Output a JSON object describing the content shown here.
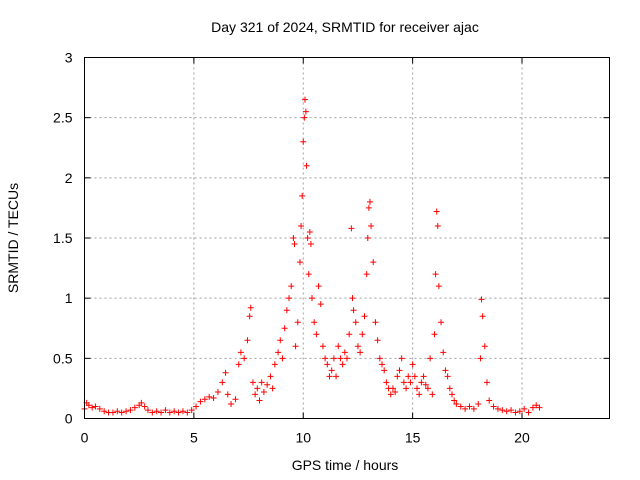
{
  "chart_data": {
    "type": "scatter",
    "title": "Day 321 of 2024, SRMTID for receiver ajac",
    "xlabel": "GPS time / hours",
    "ylabel": "SRMTID / TECUs",
    "xlim": [
      0,
      24
    ],
    "ylim": [
      0,
      3
    ],
    "xticks": [
      0,
      5,
      10,
      15,
      20
    ],
    "xtick_labels": [
      "0",
      "5",
      "10",
      "15",
      "20"
    ],
    "yticks": [
      0,
      0.5,
      1,
      1.5,
      2,
      2.5,
      3
    ],
    "ytick_labels": [
      "0",
      "0.5",
      "1",
      "1.5",
      "2",
      "2.5",
      "3"
    ],
    "grid": true,
    "marker": "plus",
    "series": [
      {
        "name": "SRMTID",
        "color": "#ff0000",
        "points": [
          [
            0.0,
            0.08
          ],
          [
            0.1,
            0.13
          ],
          [
            0.2,
            0.11
          ],
          [
            0.35,
            0.09
          ],
          [
            0.5,
            0.1
          ],
          [
            0.7,
            0.08
          ],
          [
            0.9,
            0.06
          ],
          [
            1.1,
            0.05
          ],
          [
            1.3,
            0.05
          ],
          [
            1.5,
            0.06
          ],
          [
            1.7,
            0.05
          ],
          [
            1.9,
            0.06
          ],
          [
            2.1,
            0.07
          ],
          [
            2.3,
            0.09
          ],
          [
            2.5,
            0.11
          ],
          [
            2.6,
            0.13
          ],
          [
            2.75,
            0.1
          ],
          [
            2.9,
            0.07
          ],
          [
            3.1,
            0.05
          ],
          [
            3.3,
            0.06
          ],
          [
            3.5,
            0.05
          ],
          [
            3.7,
            0.07
          ],
          [
            3.9,
            0.05
          ],
          [
            4.1,
            0.06
          ],
          [
            4.3,
            0.05
          ],
          [
            4.5,
            0.06
          ],
          [
            4.7,
            0.05
          ],
          [
            4.9,
            0.07
          ],
          [
            5.1,
            0.1
          ],
          [
            5.3,
            0.14
          ],
          [
            5.5,
            0.16
          ],
          [
            5.7,
            0.18
          ],
          [
            5.9,
            0.17
          ],
          [
            6.1,
            0.22
          ],
          [
            6.3,
            0.3
          ],
          [
            6.45,
            0.38
          ],
          [
            6.55,
            0.2
          ],
          [
            6.7,
            0.12
          ],
          [
            6.9,
            0.16
          ],
          [
            7.05,
            0.45
          ],
          [
            7.15,
            0.55
          ],
          [
            7.3,
            0.5
          ],
          [
            7.45,
            0.65
          ],
          [
            7.55,
            0.85
          ],
          [
            7.6,
            0.92
          ],
          [
            7.7,
            0.3
          ],
          [
            7.8,
            0.2
          ],
          [
            7.9,
            0.25
          ],
          [
            8.0,
            0.15
          ],
          [
            8.1,
            0.3
          ],
          [
            8.2,
            0.22
          ],
          [
            8.35,
            0.28
          ],
          [
            8.5,
            0.35
          ],
          [
            8.6,
            0.25
          ],
          [
            8.7,
            0.45
          ],
          [
            8.85,
            0.55
          ],
          [
            8.95,
            0.65
          ],
          [
            9.05,
            0.5
          ],
          [
            9.15,
            0.75
          ],
          [
            9.25,
            0.9
          ],
          [
            9.35,
            1.0
          ],
          [
            9.45,
            1.1
          ],
          [
            9.55,
            1.5
          ],
          [
            9.6,
            1.45
          ],
          [
            9.65,
            0.6
          ],
          [
            9.75,
            0.8
          ],
          [
            9.85,
            1.3
          ],
          [
            9.9,
            1.6
          ],
          [
            9.95,
            1.85
          ],
          [
            10.0,
            2.3
          ],
          [
            10.05,
            2.5
          ],
          [
            10.08,
            2.65
          ],
          [
            10.12,
            2.55
          ],
          [
            10.15,
            2.1
          ],
          [
            10.2,
            1.5
          ],
          [
            10.25,
            1.2
          ],
          [
            10.3,
            1.55
          ],
          [
            10.35,
            1.45
          ],
          [
            10.4,
            1.0
          ],
          [
            10.5,
            0.8
          ],
          [
            10.6,
            0.7
          ],
          [
            10.7,
            1.1
          ],
          [
            10.8,
            0.95
          ],
          [
            10.9,
            0.6
          ],
          [
            11.0,
            0.5
          ],
          [
            11.1,
            0.45
          ],
          [
            11.2,
            0.35
          ],
          [
            11.3,
            0.4
          ],
          [
            11.4,
            0.5
          ],
          [
            11.5,
            0.35
          ],
          [
            11.6,
            0.6
          ],
          [
            11.7,
            0.5
          ],
          [
            11.8,
            0.45
          ],
          [
            11.9,
            0.55
          ],
          [
            12.0,
            0.5
          ],
          [
            12.1,
            0.7
          ],
          [
            12.2,
            1.58
          ],
          [
            12.25,
            1.0
          ],
          [
            12.3,
            0.9
          ],
          [
            12.4,
            0.8
          ],
          [
            12.5,
            0.6
          ],
          [
            12.6,
            0.55
          ],
          [
            12.7,
            0.7
          ],
          [
            12.8,
            0.85
          ],
          [
            12.9,
            1.2
          ],
          [
            12.95,
            1.5
          ],
          [
            13.0,
            1.75
          ],
          [
            13.05,
            1.8
          ],
          [
            13.1,
            1.6
          ],
          [
            13.2,
            1.3
          ],
          [
            13.3,
            0.8
          ],
          [
            13.4,
            0.65
          ],
          [
            13.5,
            0.5
          ],
          [
            13.6,
            0.45
          ],
          [
            13.7,
            0.4
          ],
          [
            13.8,
            0.3
          ],
          [
            13.9,
            0.25
          ],
          [
            14.0,
            0.2
          ],
          [
            14.1,
            0.25
          ],
          [
            14.2,
            0.22
          ],
          [
            14.3,
            0.35
          ],
          [
            14.4,
            0.4
          ],
          [
            14.5,
            0.5
          ],
          [
            14.6,
            0.3
          ],
          [
            14.7,
            0.25
          ],
          [
            14.8,
            0.35
          ],
          [
            14.9,
            0.3
          ],
          [
            15.0,
            0.45
          ],
          [
            15.1,
            0.35
          ],
          [
            15.2,
            0.25
          ],
          [
            15.3,
            0.2
          ],
          [
            15.4,
            0.3
          ],
          [
            15.5,
            0.35
          ],
          [
            15.6,
            0.28
          ],
          [
            15.7,
            0.25
          ],
          [
            15.8,
            0.5
          ],
          [
            15.9,
            0.2
          ],
          [
            16.0,
            0.7
          ],
          [
            16.05,
            1.2
          ],
          [
            16.1,
            1.72
          ],
          [
            16.15,
            1.6
          ],
          [
            16.2,
            1.1
          ],
          [
            16.3,
            0.8
          ],
          [
            16.4,
            0.55
          ],
          [
            16.5,
            0.4
          ],
          [
            16.6,
            0.35
          ],
          [
            16.7,
            0.25
          ],
          [
            16.8,
            0.2
          ],
          [
            16.9,
            0.15
          ],
          [
            17.0,
            0.12
          ],
          [
            17.2,
            0.1
          ],
          [
            17.4,
            0.08
          ],
          [
            17.6,
            0.1
          ],
          [
            17.8,
            0.08
          ],
          [
            18.0,
            0.12
          ],
          [
            18.1,
            0.5
          ],
          [
            18.15,
            0.99
          ],
          [
            18.2,
            0.85
          ],
          [
            18.3,
            0.6
          ],
          [
            18.4,
            0.3
          ],
          [
            18.5,
            0.15
          ],
          [
            18.7,
            0.1
          ],
          [
            18.9,
            0.08
          ],
          [
            19.1,
            0.07
          ],
          [
            19.3,
            0.06
          ],
          [
            19.5,
            0.07
          ],
          [
            19.7,
            0.05
          ],
          [
            19.9,
            0.06
          ],
          [
            20.1,
            0.08
          ],
          [
            20.3,
            0.05
          ],
          [
            20.5,
            0.09
          ],
          [
            20.65,
            0.11
          ],
          [
            20.8,
            0.09
          ]
        ]
      }
    ]
  }
}
